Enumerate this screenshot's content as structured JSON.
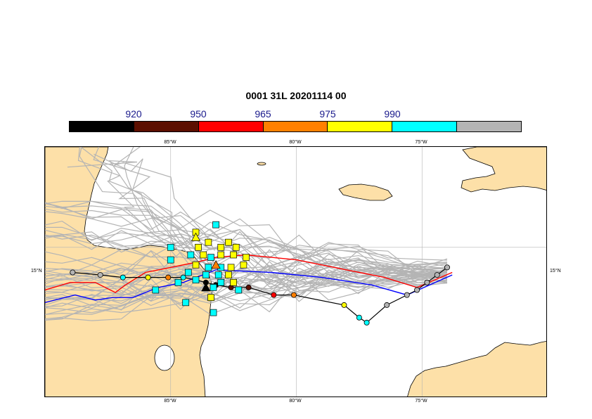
{
  "title": "0001 31L 20201114 00",
  "colorbar": {
    "labels": [
      "920",
      "950",
      "965",
      "975",
      "990"
    ],
    "colors": [
      "#000000",
      "#5c0f00",
      "#ff0000",
      "#ff8000",
      "#ffff00",
      "#00ffff",
      "#b4b4b4"
    ]
  },
  "axes": {
    "lon_top": [
      "85°W",
      "80°W",
      "75°W"
    ],
    "lon_bottom": [
      "85°W",
      "80°W",
      "75°W"
    ],
    "lat_left": [
      "15°N"
    ],
    "lat_right": [
      "15°N"
    ]
  },
  "colors": {
    "land": "#fde0a8",
    "ensemble": "#b4b4b4",
    "grid": "#b4b4b4",
    "track_red": "#ff0000",
    "track_blue": "#0000ff",
    "track_black": "#000000"
  },
  "map_data": {
    "lon_range": [
      -90,
      -70
    ],
    "lat_range": [
      9,
      19
    ],
    "black_track": [
      {
        "lon": -74.0,
        "lat": 14.2,
        "c": "#b4b4b4"
      },
      {
        "lon": -74.4,
        "lat": 13.9,
        "c": "#b4b4b4"
      },
      {
        "lon": -74.8,
        "lat": 13.6,
        "c": "#b4b4b4"
      },
      {
        "lon": -75.2,
        "lat": 13.3,
        "c": "#b4b4b4"
      },
      {
        "lon": -75.6,
        "lat": 13.1,
        "c": "#b4b4b4"
      },
      {
        "lon": -76.4,
        "lat": 12.7,
        "c": "#b4b4b4"
      },
      {
        "lon": -77.2,
        "lat": 12.0,
        "c": "#00ffff"
      },
      {
        "lon": -77.5,
        "lat": 12.2,
        "c": "#00ffff"
      },
      {
        "lon": -78.1,
        "lat": 12.7,
        "c": "#ffff00"
      },
      {
        "lon": -80.1,
        "lat": 13.1,
        "c": "#ff8000"
      },
      {
        "lon": -80.9,
        "lat": 13.1,
        "c": "#ff0000"
      },
      {
        "lon": -81.9,
        "lat": 13.4,
        "c": "#5c0f00"
      },
      {
        "lon": -82.6,
        "lat": 13.4,
        "c": "#5c0f00"
      },
      {
        "lon": -83.2,
        "lat": 13.5,
        "c": "#000000"
      },
      {
        "lon": -83.6,
        "lat": 13.6,
        "c": "#000000"
      },
      {
        "lon": -84.0,
        "lat": 13.7,
        "c": "#000000"
      },
      {
        "lon": -84.5,
        "lat": 13.8,
        "c": "#00ffff"
      },
      {
        "lon": -85.1,
        "lat": 13.8,
        "c": "#ff8000"
      },
      {
        "lon": -85.9,
        "lat": 13.8,
        "c": "#ffff00"
      },
      {
        "lon": -86.9,
        "lat": 13.8,
        "c": "#00ffff"
      },
      {
        "lon": -87.8,
        "lat": 13.9,
        "c": "#b4b4b4"
      },
      {
        "lon": -88.9,
        "lat": 14.0,
        "c": "#b4b4b4"
      }
    ],
    "red_track": [
      [
        -73.8,
        14.0
      ],
      [
        -75.2,
        13.4
      ],
      [
        -76.5,
        13.8
      ],
      [
        -78.0,
        14.1
      ],
      [
        -80.0,
        14.5
      ],
      [
        -82.0,
        14.7
      ],
      [
        -83.2,
        14.6
      ],
      [
        -84.0,
        14.4
      ],
      [
        -85.0,
        14.2
      ],
      [
        -86.0,
        14.0
      ],
      [
        -86.8,
        13.5
      ],
      [
        -87.2,
        13.2
      ],
      [
        -88.0,
        13.6
      ],
      [
        -89.0,
        13.6
      ],
      [
        -90.0,
        13.3
      ]
    ],
    "blue_track": [
      [
        -73.8,
        13.9
      ],
      [
        -75.6,
        13.1
      ],
      [
        -77.0,
        13.5
      ],
      [
        -79.0,
        13.8
      ],
      [
        -81.0,
        14.0
      ],
      [
        -83.2,
        14.1
      ],
      [
        -84.5,
        13.6
      ],
      [
        -85.5,
        13.4
      ],
      [
        -86.5,
        13.0
      ],
      [
        -87.3,
        13.0
      ],
      [
        -88.0,
        12.9
      ],
      [
        -88.8,
        13.1
      ],
      [
        -90.0,
        12.8
      ]
    ],
    "squares": [
      {
        "lon": -84.0,
        "lat": 15.6,
        "c": "#ffff00"
      },
      {
        "lon": -83.2,
        "lat": 15.9,
        "c": "#00ffff"
      },
      {
        "lon": -83.9,
        "lat": 15.0,
        "c": "#ffff00"
      },
      {
        "lon": -83.5,
        "lat": 15.2,
        "c": "#ffff00"
      },
      {
        "lon": -83.0,
        "lat": 15.0,
        "c": "#ffff00"
      },
      {
        "lon": -82.7,
        "lat": 15.2,
        "c": "#ffff00"
      },
      {
        "lon": -82.4,
        "lat": 15.0,
        "c": "#ffff00"
      },
      {
        "lon": -84.2,
        "lat": 14.7,
        "c": "#00ffff"
      },
      {
        "lon": -83.7,
        "lat": 14.7,
        "c": "#ffff00"
      },
      {
        "lon": -83.4,
        "lat": 14.6,
        "c": "#00ffff"
      },
      {
        "lon": -83.0,
        "lat": 14.7,
        "c": "#ffff00"
      },
      {
        "lon": -82.5,
        "lat": 14.7,
        "c": "#ffff00"
      },
      {
        "lon": -82.0,
        "lat": 14.6,
        "c": "#ffff00"
      },
      {
        "lon": -85.0,
        "lat": 14.5,
        "c": "#00ffff"
      },
      {
        "lon": -84.0,
        "lat": 14.3,
        "c": "#ffff00"
      },
      {
        "lon": -83.5,
        "lat": 14.2,
        "c": "#00ffff"
      },
      {
        "lon": -83.0,
        "lat": 14.2,
        "c": "#00ffff"
      },
      {
        "lon": -82.6,
        "lat": 14.2,
        "c": "#ffff00"
      },
      {
        "lon": -82.1,
        "lat": 14.3,
        "c": "#ffff00"
      },
      {
        "lon": -84.3,
        "lat": 14.0,
        "c": "#00ffff"
      },
      {
        "lon": -83.6,
        "lat": 13.9,
        "c": "#00ffff"
      },
      {
        "lon": -83.1,
        "lat": 13.9,
        "c": "#00ffff"
      },
      {
        "lon": -82.7,
        "lat": 13.9,
        "c": "#ffff00"
      },
      {
        "lon": -84.7,
        "lat": 13.6,
        "c": "#00ffff"
      },
      {
        "lon": -84.0,
        "lat": 13.7,
        "c": "#00ffff"
      },
      {
        "lon": -83.0,
        "lat": 13.6,
        "c": "#00ffff"
      },
      {
        "lon": -82.5,
        "lat": 13.6,
        "c": "#ffff00"
      },
      {
        "lon": -85.6,
        "lat": 13.3,
        "c": "#00ffff"
      },
      {
        "lon": -83.3,
        "lat": 13.4,
        "c": "#00ffff"
      },
      {
        "lon": -82.3,
        "lat": 13.3,
        "c": "#00ffff"
      },
      {
        "lon": -83.4,
        "lat": 13.0,
        "c": "#ffff00"
      },
      {
        "lon": -84.4,
        "lat": 12.8,
        "c": "#00ffff"
      },
      {
        "lon": -83.3,
        "lat": 12.4,
        "c": "#00ffff"
      },
      {
        "lon": -85.0,
        "lat": 15.0,
        "c": "#00ffff"
      }
    ],
    "triangles": [
      {
        "lon": -83.6,
        "lat": 13.4,
        "c": "#000000"
      },
      {
        "lon": -84.0,
        "lat": 15.4,
        "c": "#ffff00"
      },
      {
        "lon": -83.2,
        "lat": 14.3,
        "c": "#ff8000"
      }
    ]
  }
}
